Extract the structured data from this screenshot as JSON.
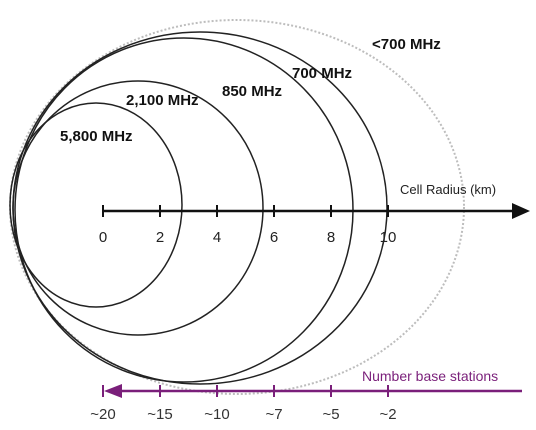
{
  "frequency_bands": [
    {
      "label": "<700 MHz",
      "stroke": "#bdbdbd",
      "dotted": true
    },
    {
      "label": "700 MHz",
      "stroke": "#222222",
      "dotted": false
    },
    {
      "label": "850 MHz",
      "stroke": "#222222",
      "dotted": false
    },
    {
      "label": "2,100 MHz",
      "stroke": "#222222",
      "dotted": false
    },
    {
      "label": "5,800 MHz",
      "stroke": "#222222",
      "dotted": false
    }
  ],
  "radius_axis": {
    "title": "Cell Radius (km)",
    "ticks": [
      "0",
      "2",
      "4",
      "6",
      "8",
      "10"
    ],
    "color": "#111111"
  },
  "base_stations_axis": {
    "title": "Number base stations",
    "ticks": [
      "~20",
      "~15",
      "~10",
      "~7",
      "~5",
      "~2"
    ],
    "color": "#7a1f7a"
  }
}
